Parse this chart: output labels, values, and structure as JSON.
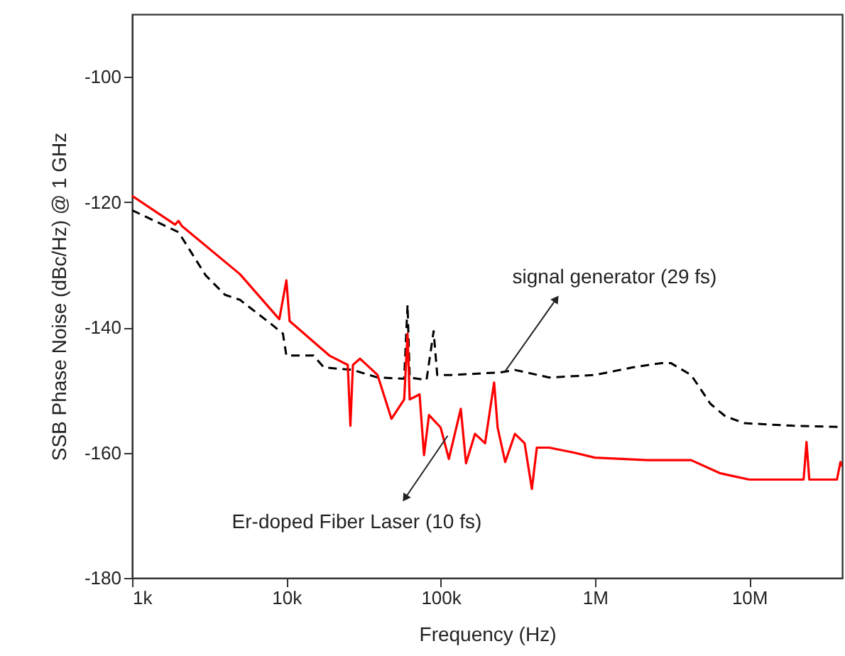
{
  "chart_data": {
    "type": "line",
    "xlabel": "Frequency (Hz)",
    "ylabel": "SSB Phase Noise (dBc/Hz) @ 1 GHz",
    "log": "x",
    "grid": false,
    "marker": "none",
    "xlim": [
      1000,
      40000000
    ],
    "xticks": [
      {
        "value": 1000,
        "label": "1k"
      },
      {
        "value": 10000,
        "label": "10k"
      },
      {
        "value": 100000,
        "label": "100k"
      },
      {
        "value": 1000000,
        "label": "1M"
      },
      {
        "value": 10000000,
        "label": "10M"
      }
    ],
    "ylim": [
      -180,
      -90
    ],
    "yticks": [
      -180,
      -160,
      -140,
      -120,
      -100
    ],
    "series": [
      {
        "color": "#000000",
        "line_style": "dashed",
        "x": [
          1000,
          2000,
          3000,
          4000,
          5000,
          8000,
          9500,
          10000,
          15000,
          17500,
          27000,
          39000,
          58000,
          61000,
          63000,
          81000,
          90000,
          95000,
          117000,
          243000,
          303000,
          505000,
          1000000,
          1750000,
          2700000,
          3100000,
          4200000,
          5600000,
          7000000,
          9300000,
          19000000,
          40000000
        ],
        "values": [
          -121.3,
          -124.8,
          -131.7,
          -134.8,
          -135.6,
          -139.5,
          -141,
          -144.5,
          -144.5,
          -146.4,
          -146.8,
          -148,
          -148.2,
          -136.4,
          -148,
          -148.4,
          -140.6,
          -147.6,
          -147.6,
          -147.2,
          -146.8,
          -148,
          -147.6,
          -146.4,
          -145.7,
          -145.7,
          -147.6,
          -152.2,
          -154.2,
          -155.3,
          -155.7,
          -155.9
        ]
      },
      {
        "color": "#ff0000",
        "line_style": "solid",
        "x": [
          1000,
          1900,
          2000,
          2100,
          5000,
          9000,
          10000,
          10500,
          19000,
          25000,
          26000,
          27000,
          30000,
          39000,
          48000,
          58000,
          61000,
          63000,
          73000,
          78000,
          84000,
          100000,
          113000,
          135000,
          146000,
          167000,
          194000,
          222000,
          234000,
          262000,
          303000,
          350000,
          390000,
          420000,
          505000,
          730000,
          1000000,
          2200000,
          4200000,
          6500000,
          10000000,
          22500000,
          23500000,
          24500000,
          37000000,
          39000000,
          40000000
        ],
        "values": [
          -119,
          -123.6,
          -123,
          -123.8,
          -131.5,
          -138.7,
          -132.5,
          -139,
          -144.5,
          -146,
          -155.7,
          -146,
          -145,
          -147.6,
          -154.6,
          -151.5,
          -141,
          -151.5,
          -150.7,
          -160.4,
          -154,
          -156,
          -161,
          -153,
          -161.7,
          -157,
          -158.5,
          -148.8,
          -156,
          -161.5,
          -157,
          -158.5,
          -165.8,
          -159.2,
          -159.2,
          -160,
          -160.8,
          -161.2,
          -161.2,
          -163.3,
          -164.3,
          -164.3,
          -158.3,
          -164.3,
          -164.3,
          -161.5,
          -162.2
        ]
      }
    ],
    "annotations": [
      {
        "text": "signal generator (29 fs)",
        "x": 262000,
        "y": -147
      },
      {
        "text": "Er-doped Fiber Laser (10 fs)",
        "x": 111000,
        "y": -157.3
      }
    ]
  }
}
